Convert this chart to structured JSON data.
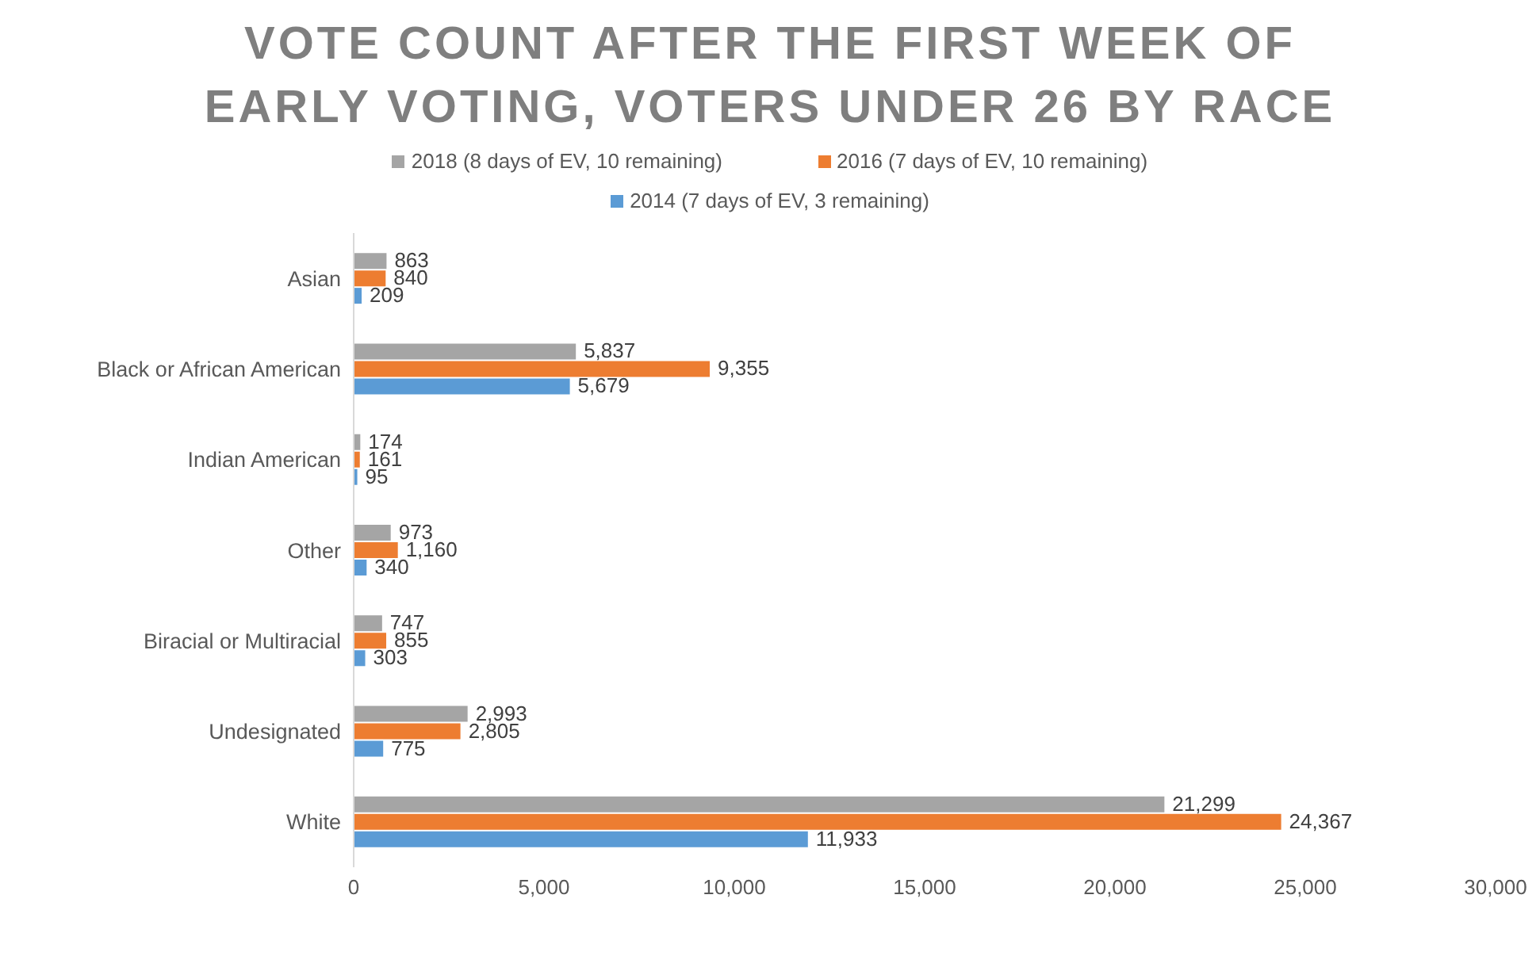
{
  "chart_data": {
    "type": "bar",
    "orientation": "horizontal",
    "title": "VOTE COUNT AFTER THE FIRST WEEK OF EARLY VOTING, VOTERS UNDER 26 BY RACE",
    "categories": [
      "Asian",
      "Black or African American",
      "Indian American",
      "Other",
      "Biracial or Multiracial",
      "Undesignated",
      "White"
    ],
    "series": [
      {
        "name": "2018 (8 days of EV, 10 remaining)",
        "color": "#a5a5a5",
        "values": [
          863,
          5837,
          174,
          973,
          747,
          2993,
          21299
        ],
        "value_labels": [
          "863",
          "5,837",
          "174",
          "973",
          "747",
          "2,993",
          "21,299"
        ]
      },
      {
        "name": "2016 (7 days of EV, 10 remaining)",
        "color": "#ed7d31",
        "values": [
          840,
          9355,
          161,
          1160,
          855,
          2805,
          24367
        ],
        "value_labels": [
          "840",
          "9,355",
          "161",
          "1,160",
          "855",
          "2,805",
          "24,367"
        ]
      },
      {
        "name": "2014 (7 days of EV, 3 remaining)",
        "color": "#5b9bd5",
        "values": [
          209,
          5679,
          95,
          340,
          303,
          775,
          11933
        ],
        "value_labels": [
          "209",
          "5,679",
          "95",
          "340",
          "303",
          "775",
          "11,933"
        ]
      }
    ],
    "xlim": [
      0,
      30000
    ],
    "xticks": [
      0,
      {
        "value": 5000,
        "label": "5,000"
      },
      {
        "value": 10000,
        "label": "10,000"
      },
      {
        "value": 15000,
        "label": "15,000"
      },
      {
        "value": 20000,
        "label": "20,000"
      },
      {
        "value": 25000,
        "label": "25,000"
      },
      {
        "value": 30000,
        "label": "30,000"
      }
    ],
    "legend": "top",
    "grid": false
  }
}
